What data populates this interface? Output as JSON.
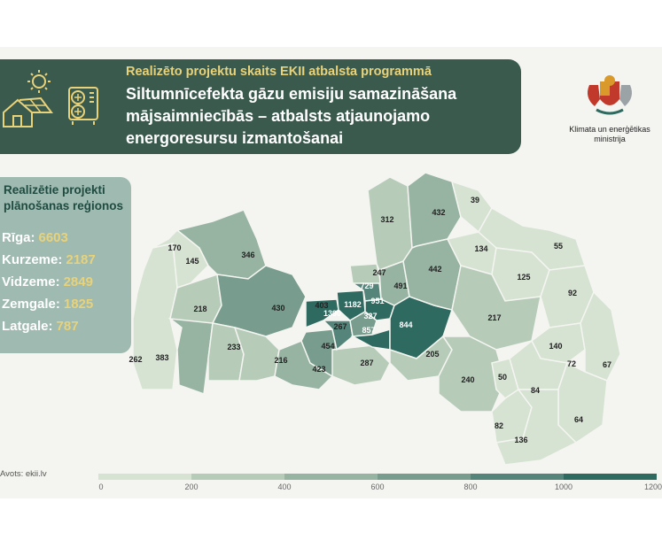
{
  "header": {
    "subtitle": "Realizēto projektu skaits EKII atbalsta programmā",
    "title": "Siltumnīcefekta gāzu emisiju samazināšana mājsaimniecībās – atbalsts atjaunojamo energoresursu izmantošanai"
  },
  "logo": {
    "caption_line1": "Klimata un enerģētikas",
    "caption_line2": "ministrija"
  },
  "regions": {
    "title": "Realizētie projekti plānošanas reģionos",
    "items": [
      {
        "name": "Rīga:",
        "value": "6603"
      },
      {
        "name": "Kurzeme:",
        "value": "2187"
      },
      {
        "name": "Vidzeme:",
        "value": "2849"
      },
      {
        "name": "Zemgale:",
        "value": "1825"
      },
      {
        "name": "Latgale:",
        "value": "787"
      }
    ]
  },
  "source": "Avots: ekii.lv",
  "legend": {
    "ticks": [
      "0",
      "200",
      "400",
      "600",
      "800",
      "1000",
      "1200"
    ],
    "colors": [
      "#d6e2d2",
      "#b7cbb9",
      "#97b3a2",
      "#789d8e",
      "#55857a",
      "#2f6a60"
    ]
  },
  "map_values": [
    "170",
    "145",
    "346",
    "218",
    "430",
    "262",
    "383",
    "233",
    "216",
    "423",
    "454",
    "267",
    "403",
    "1390",
    "1182",
    "729",
    "247",
    "951",
    "491",
    "327",
    "857",
    "844",
    "312",
    "432",
    "39",
    "442",
    "134",
    "55",
    "125",
    "92",
    "217",
    "287",
    "205",
    "240",
    "50",
    "140",
    "72",
    "67",
    "84",
    "64",
    "82",
    "136"
  ],
  "colors": {
    "header_bg": "#3b5a4e",
    "accent_yellow": "#e8d27a",
    "region_panel": "#9fbab0"
  }
}
